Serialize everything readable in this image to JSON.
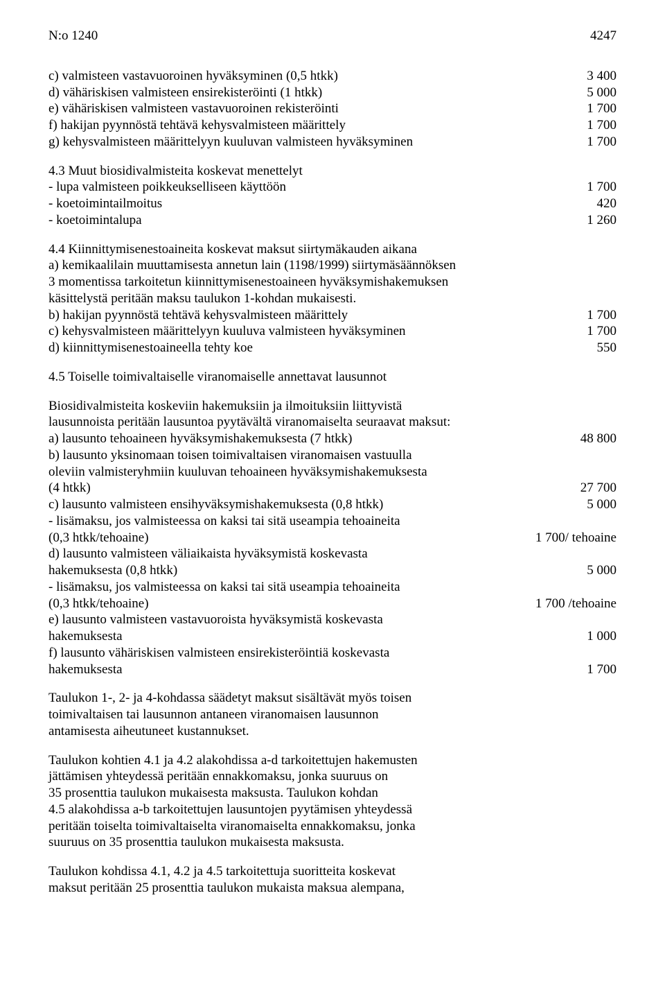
{
  "header": {
    "code": "N:o 1240",
    "page": "4247"
  },
  "s1": {
    "c_l": "c) valmisteen vastavuoroinen hyväksyminen (0,5 htkk)",
    "c_r": "3 400",
    "d_l": "d) vähäriskisen valmisteen ensirekisteröinti (1 htkk)",
    "d_r": "5 000",
    "e_l": "e) vähäriskisen  valmisteen vastavuoroinen rekisteröinti",
    "e_r": "1 700",
    "f_l": "f) hakijan pyynnöstä tehtävä kehysvalmisteen määrittely",
    "f_r": "1 700",
    "g_l": "g) kehysvalmisteen määrittelyyn kuuluvan valmisteen hyväksyminen",
    "g_r": "1 700"
  },
  "s2": {
    "t": "4.3 Muut biosidivalmisteita koskevat menettelyt",
    "a_l": "- lupa valmisteen poikkeukselliseen käyttöön",
    "a_r": "1 700",
    "b_l": "- koetoimintailmoitus",
    "b_r": "420",
    "c_l": "- koetoimintalupa",
    "c_r": "1 260"
  },
  "s3": {
    "l1": "4.4 Kiinnittymisenestoaineita koskevat maksut siirtymäkauden aikana",
    "l2": "a) kemikaalilain muuttamisesta annetun lain (1198/1999) siirtymäsäännöksen",
    "l3": "3 momentissa tarkoitetun kiinnittymisenestoaineen hyväksymishakemuksen",
    "l4": "käsittelystä peritään maksu taulukon 1-kohdan mukaisesti.",
    "b_l": "b) hakijan pyynnöstä tehtävä kehysvalmisteen määrittely",
    "b_r": "1 700",
    "c_l": "c) kehysvalmisteen määrittelyyn kuuluva valmisteen hyväksyminen",
    "c_r": "1 700",
    "d_l": "d) kiinnittymisenestoaineella tehty koe",
    "d_r": "550"
  },
  "s4": {
    "t": "4.5 Toiselle toimivaltaiselle viranomaiselle annettavat lausunnot",
    "l1": "Biosidivalmisteita koskeviin hakemuksiin ja ilmoituksiin liittyvistä",
    "l2": "lausunnoista peritään lausuntoa pyytävältä viranomaiselta seuraavat maksut:",
    "a_l": "a) lausunto tehoaineen hyväksymishakemuksesta (7 htkk)",
    "a_r": "48 800",
    "b1": "b) lausunto yksinomaan toisen toimivaltaisen viranomaisen vastuulla",
    "b2": "oleviin valmisteryhmiin kuuluvan tehoaineen hyväksymishakemuksesta",
    "b3_l": "(4 htkk)",
    "b3_r": "27 700",
    "c_l": "c) lausunto valmisteen ensihyväksymishakemuksesta (0,8 htkk)",
    "c_r": "5 000",
    "lm1": "- lisämaksu, jos valmisteessa on kaksi tai sitä useampia tehoaineita",
    "lm1b_l": "(0,3 htkk/tehoaine)",
    "lm1b_r": "1 700/ tehoaine",
    "d1": "d) lausunto valmisteen väliaikaista hyväksymistä koskevasta",
    "d2_l": "hakemuksesta (0,8 htkk)",
    "d2_r": "5 000",
    "lm2": "- lisämaksu, jos valmisteessa on kaksi tai sitä useampia tehoaineita",
    "lm2b_l": "(0,3 htkk/tehoaine)",
    "lm2b_r": "1 700 /tehoaine",
    "e1": "e) lausunto valmisteen vastavuoroista hyväksymistä koskevasta",
    "e2_l": "hakemuksesta",
    "e2_r": "1 000",
    "f1": "f) lausunto vähäriskisen valmisteen ensirekisteröintiä koskevasta",
    "f2_l": "hakemuksesta",
    "f2_r": "1 700"
  },
  "p1": {
    "l1": "Taulukon 1-, 2- ja 4-kohdassa säädetyt maksut sisältävät myös toisen",
    "l2": "toimivaltaisen tai lausunnon antaneen viranomaisen lausunnon",
    "l3": "antamisesta aiheutuneet kustannukset."
  },
  "p2": {
    "l1": "Taulukon kohtien 4.1 ja 4.2 alakohdissa a-d tarkoitettujen hakemusten",
    "l2": "jättämisen yhteydessä peritään ennakkomaksu, jonka suuruus on",
    "l3": "35 prosenttia taulukon mukaisesta maksusta. Taulukon kohdan",
    "l4": "4.5 alakohdissa a-b tarkoitettujen lausuntojen pyytämisen yhteydessä",
    "l5": "peritään toiselta toimivaltaiselta viranomaiselta ennakkomaksu, jonka",
    "l6": "suuruus on 35 prosenttia taulukon mukaisesta maksusta."
  },
  "p3": {
    "l1": "Taulukon kohdissa 4.1, 4.2 ja 4.5 tarkoitettuja suoritteita koskevat",
    "l2": "maksut peritään 25 prosenttia taulukon mukaista maksua alempana,"
  }
}
